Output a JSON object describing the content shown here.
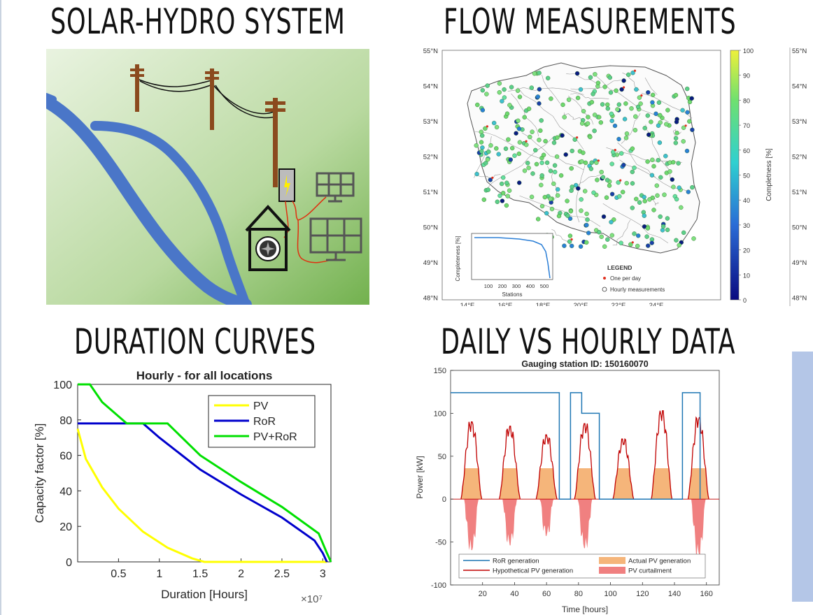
{
  "headings": {
    "solar_hydro": "SOLAR-HYDRO SYSTEM",
    "flow": "FLOW MEASUREMENTS",
    "duration": "DURATION CURVES",
    "daily_hourly": "DAILY VS HOURLY DATA"
  },
  "colors": {
    "river": "#4a76c8",
    "pole": "#8b4a1e",
    "pv": "#ffff00",
    "ror": "#0000cc",
    "pvror": "#00e000",
    "ror_line": "#1f77b4",
    "hyp_pv": "#c00000",
    "actual_pv": "#f5b57a",
    "curtail": "#f08080",
    "side_strip": "#b4c6e7"
  },
  "map": {
    "lat_ticks": [
      "55°N",
      "54°N",
      "53°N",
      "52°N",
      "51°N",
      "50°N",
      "49°N",
      "48°N"
    ],
    "lon_ticks": [
      "14°E",
      "16°E",
      "18°E",
      "20°E",
      "22°E",
      "24°E"
    ],
    "colorbar_ticks": [
      "100",
      "90",
      "80",
      "70",
      "60",
      "50",
      "40",
      "30",
      "20",
      "10",
      "0"
    ],
    "colorbar_label": "Completness [%]",
    "right_lat_ticks": [
      "55°N",
      "54°N",
      "53°N",
      "52°N",
      "51°N",
      "50°N",
      "49°N",
      "48°N"
    ],
    "inset": {
      "ylabel": "Completeness [%]",
      "xlabel": "Stations",
      "xticks": [
        "100",
        "200",
        "300",
        "400",
        "500"
      ]
    },
    "legend": {
      "title": "LEGEND",
      "items": [
        "One per day",
        "Hourly measurements"
      ]
    }
  },
  "chart_data": [
    {
      "type": "line",
      "title": "Hourly - for all locations",
      "xlabel": "Duration [Hours]",
      "ylabel": "Capacity factor [%]",
      "x_multiplier": "×10⁷",
      "xlim": [
        0,
        3.1
      ],
      "ylim": [
        0,
        100
      ],
      "xticks": [
        "0.5",
        "1",
        "1.5",
        "2",
        "2.5",
        "3"
      ],
      "yticks": [
        "0",
        "20",
        "40",
        "60",
        "80",
        "100"
      ],
      "legend_position": "top-right",
      "series": [
        {
          "name": "PV",
          "x": [
            0,
            0.1,
            0.3,
            0.5,
            0.8,
            1.1,
            1.4,
            1.55,
            3.05
          ],
          "y": [
            75,
            58,
            42,
            30,
            17,
            8,
            2,
            0,
            0
          ]
        },
        {
          "name": "RoR",
          "x": [
            0,
            0.8,
            1.0,
            1.5,
            2.0,
            2.5,
            2.9,
            3.0,
            3.05
          ],
          "y": [
            78,
            78,
            70,
            52,
            38,
            25,
            12,
            5,
            0
          ]
        },
        {
          "name": "PV+RoR",
          "x": [
            0,
            0.15,
            0.3,
            0.6,
            1.1,
            1.5,
            2.0,
            2.5,
            2.95,
            3.05,
            3.1
          ],
          "y": [
            100,
            100,
            90,
            78,
            78,
            60,
            45,
            31,
            16,
            5,
            0
          ]
        }
      ]
    },
    {
      "type": "area",
      "title": "Gauging station ID: 150160070",
      "xlabel": "Time [hours]",
      "ylabel": "Power [kW]",
      "xlim": [
        0,
        168
      ],
      "ylim": [
        -100,
        150
      ],
      "xticks": [
        "20",
        "40",
        "60",
        "80",
        "100",
        "120",
        "140",
        "160"
      ],
      "yticks": [
        "-100",
        "-50",
        "0",
        "50",
        "100",
        "150"
      ],
      "legend_position": "bottom",
      "series_names": [
        "RoR generation",
        "Actual PV generation",
        "Hypothetical PV generation",
        "PV curtailment"
      ],
      "ror_generation": {
        "x": [
          0,
          67,
          68,
          74,
          75,
          81,
          82,
          92,
          93,
          144,
          145,
          155,
          156
        ],
        "y": [
          124,
          124,
          0,
          0,
          124,
          124,
          100,
          100,
          0,
          0,
          124,
          124,
          0
        ]
      },
      "pv_curtail_threshold": 36,
      "pv_days": [
        {
          "peak_time": 13,
          "peak": 90
        },
        {
          "peak_time": 37,
          "peak": 85
        },
        {
          "peak_time": 60,
          "peak": 75
        },
        {
          "peak_time": 84,
          "peak": 88
        },
        {
          "peak_time": 108,
          "peak": 70
        },
        {
          "peak_time": 132,
          "peak": 103
        },
        {
          "peak_time": 155,
          "peak": 95
        }
      ]
    }
  ]
}
